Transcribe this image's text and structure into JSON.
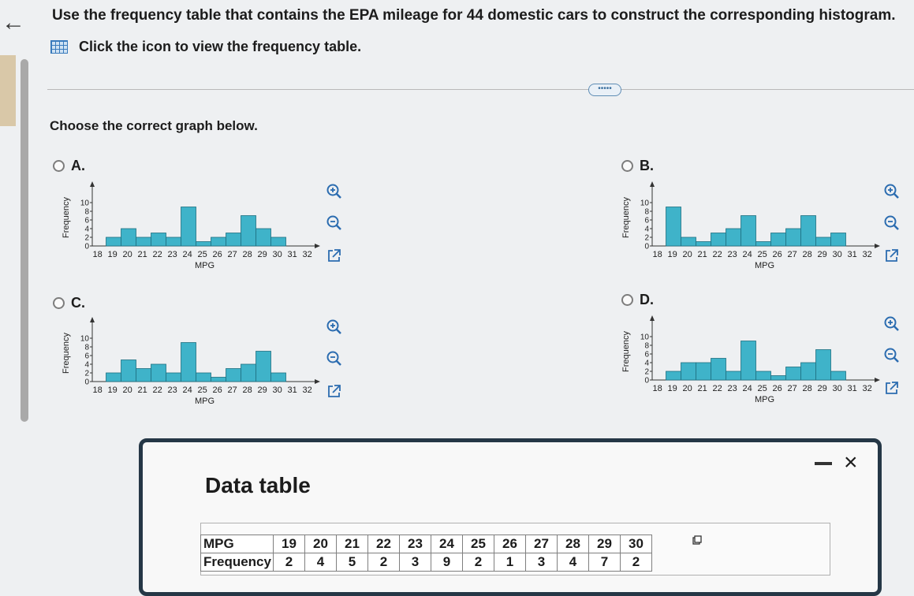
{
  "question": "Use the frequency table that contains the EPA mileage for 44 domestic cars to construct the corresponding histogram.",
  "table_link": "Click the icon to view the frequency table.",
  "more_button": "•••••",
  "prompt": "Choose the correct graph below.",
  "graph_common": {
    "ylabel": "Frequency",
    "xlabel": "MPG",
    "yticks": [
      "10",
      "8",
      "6",
      "4",
      "2",
      "0"
    ],
    "xticks": [
      "18",
      "19",
      "20",
      "21",
      "22",
      "23",
      "24",
      "25",
      "26",
      "27",
      "28",
      "29",
      "30",
      "31",
      "32"
    ]
  },
  "options": [
    {
      "label": "A."
    },
    {
      "label": "B."
    },
    {
      "label": "C."
    },
    {
      "label": "D."
    }
  ],
  "data_table": {
    "title": "Data table",
    "minimize": "-",
    "close": "×",
    "mpg_label": "MPG",
    "freq_label": "Frequency",
    "mpg": [
      "19",
      "20",
      "21",
      "22",
      "23",
      "24",
      "25",
      "26",
      "27",
      "28",
      "29",
      "30"
    ],
    "frequency": [
      "2",
      "4",
      "5",
      "2",
      "3",
      "9",
      "2",
      "1",
      "3",
      "4",
      "7",
      "2"
    ]
  },
  "icons": {
    "zoom_in": "zoom-in-icon",
    "zoom_out": "zoom-out-icon",
    "popout": "popout-icon"
  },
  "colors": {
    "bar": "#3fb3c9",
    "bar_edge": "#1f6f80",
    "panel_border": "#253746",
    "accent": "#3a7bbd"
  },
  "chart_data": [
    {
      "type": "bar",
      "title": "",
      "xlabel": "MPG",
      "ylabel": "Frequency",
      "ylim": [
        0,
        11
      ],
      "categories": [
        "19",
        "20",
        "21",
        "22",
        "23",
        "24",
        "25",
        "26",
        "27",
        "28",
        "29",
        "30"
      ],
      "values": [
        2,
        4,
        2,
        3,
        2,
        9,
        1,
        2,
        3,
        7,
        4,
        2
      ]
    },
    {
      "type": "bar",
      "title": "",
      "xlabel": "MPG",
      "ylabel": "Frequency",
      "ylim": [
        0,
        11
      ],
      "categories": [
        "19",
        "20",
        "21",
        "22",
        "23",
        "24",
        "25",
        "26",
        "27",
        "28",
        "29",
        "30"
      ],
      "values": [
        9,
        2,
        1,
        3,
        4,
        7,
        1,
        3,
        4,
        7,
        2,
        3
      ]
    },
    {
      "type": "bar",
      "title": "",
      "xlabel": "MPG",
      "ylabel": "Frequency",
      "ylim": [
        0,
        11
      ],
      "categories": [
        "19",
        "20",
        "21",
        "22",
        "23",
        "24",
        "25",
        "26",
        "27",
        "28",
        "29",
        "30"
      ],
      "values": [
        2,
        5,
        3,
        4,
        2,
        9,
        2,
        1,
        3,
        4,
        7,
        2
      ]
    },
    {
      "type": "bar",
      "title": "",
      "xlabel": "MPG",
      "ylabel": "Frequency",
      "ylim": [
        0,
        11
      ],
      "categories": [
        "19",
        "20",
        "21",
        "22",
        "23",
        "24",
        "25",
        "26",
        "27",
        "28",
        "29",
        "30"
      ],
      "values": [
        2,
        4,
        4,
        5,
        2,
        9,
        2,
        1,
        3,
        4,
        7,
        2
      ]
    }
  ]
}
